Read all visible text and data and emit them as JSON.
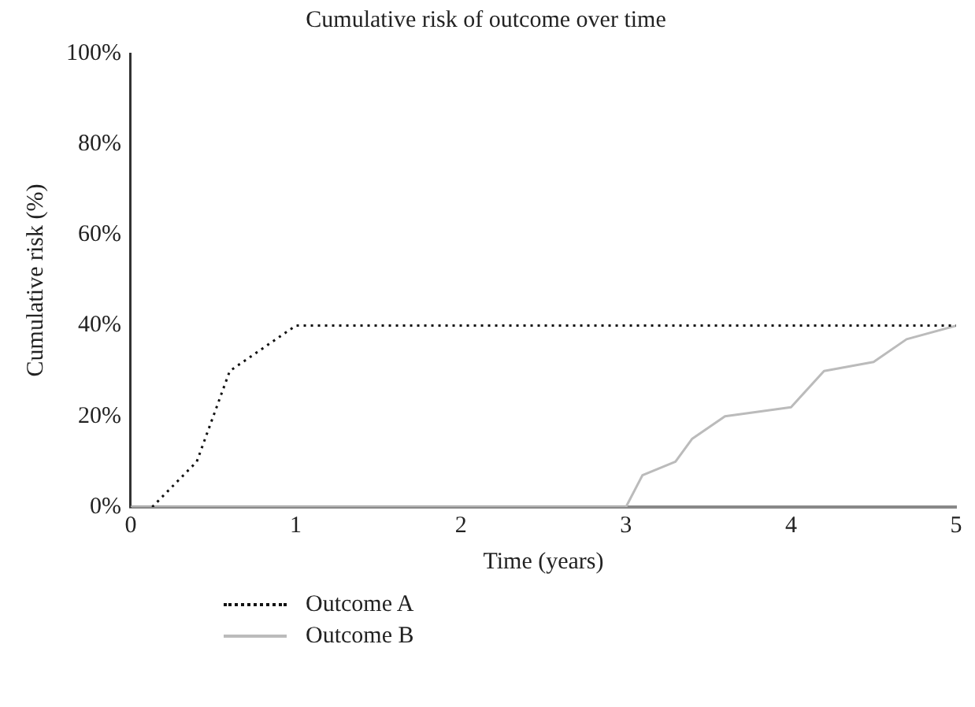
{
  "chart_data": {
    "type": "line",
    "title": "Cumulative risk of outcome over time",
    "xlabel": "Time (years)",
    "ylabel": "Cumulative risk (%)",
    "xlim": [
      0,
      5
    ],
    "xticks": [
      0,
      1,
      2,
      3,
      4,
      5
    ],
    "ylim": [
      0,
      100
    ],
    "yticks": [
      {
        "value": 0,
        "label": "0%"
      },
      {
        "value": 20,
        "label": "20%"
      },
      {
        "value": 40,
        "label": "40%"
      },
      {
        "value": 60,
        "label": "60%"
      },
      {
        "value": 80,
        "label": "80%"
      },
      {
        "value": 100,
        "label": "100%"
      }
    ],
    "grid": false,
    "legend": "bottom",
    "marker": "none",
    "series": [
      {
        "name": "Outcome A",
        "color": "#111111",
        "line_style": "dotted",
        "x": [
          0.13,
          0.4,
          0.6,
          1.0,
          5
        ],
        "values": [
          0,
          10,
          30,
          40,
          40
        ]
      },
      {
        "name": "Outcome B",
        "color": "#bbbbbb",
        "line_style": "solid",
        "x": [
          0,
          3.0,
          3.1,
          3.3,
          3.4,
          3.6,
          4.0,
          4.2,
          4.5,
          4.7,
          5
        ],
        "values": [
          0,
          0,
          7,
          10,
          15,
          20,
          22,
          30,
          32,
          37,
          40
        ]
      }
    ]
  }
}
